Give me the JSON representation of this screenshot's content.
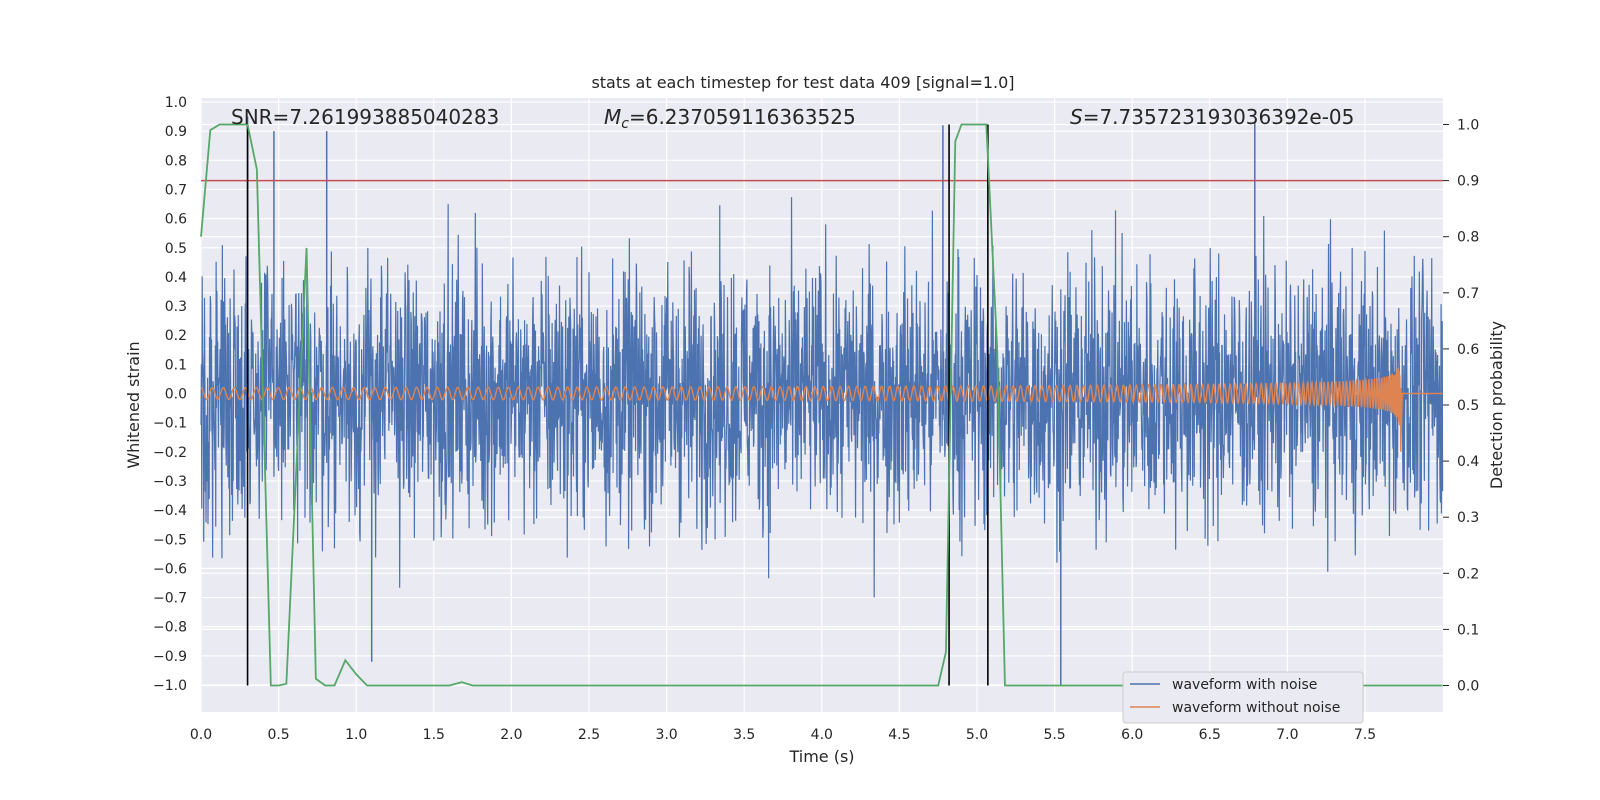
{
  "chart_data": {
    "type": "line",
    "title": "stats at each timestep for test data 409 [signal=1.0]",
    "xlabel": "Time (s)",
    "ylabel": "Whitened strain",
    "y2label": "Detection probability",
    "xlim": [
      0.0,
      8.0
    ],
    "ylim": [
      -1.1,
      1.03
    ],
    "y2lim": [
      -0.05,
      1.04
    ],
    "x_ticks": [
      "0.0",
      "0.5",
      "1.0",
      "1.5",
      "2.0",
      "2.5",
      "3.0",
      "3.5",
      "4.0",
      "4.5",
      "5.0",
      "5.5",
      "6.0",
      "6.5",
      "7.0",
      "7.5"
    ],
    "y_ticks": [
      "1.0",
      "0.9",
      "0.8",
      "0.7",
      "0.6",
      "0.5",
      "0.4",
      "0.3",
      "0.2",
      "0.1",
      "0.0",
      "−0.1",
      "−0.2",
      "−0.3",
      "−0.4",
      "−0.5",
      "−0.6",
      "−0.7",
      "−0.8",
      "−0.9",
      "−1.0"
    ],
    "y2_ticks": [
      "1.0",
      "0.9",
      "0.8",
      "0.7",
      "0.6",
      "0.5",
      "0.4",
      "0.3",
      "0.2",
      "0.1",
      "0.0"
    ],
    "grid": true,
    "legend_position": "lower-right",
    "annotations": {
      "snr_prefix": "SNR=",
      "snr_value": "7.261993885040283",
      "mc_symbol": "M",
      "mc_sub": "c",
      "mc_value": "=6.237059116363525",
      "s_symbol": "S",
      "s_value": "=7.735723193036392e-05"
    },
    "series": [
      {
        "name": "waveform with noise",
        "color": "#4c72b0",
        "kind": "noise",
        "range": [
          -1.0,
          0.93
        ],
        "typical_amplitude": 0.55,
        "notable_peaks": [
          [
            0.3,
            0.95
          ],
          [
            0.47,
            0.9
          ],
          [
            0.81,
            0.9
          ],
          [
            4.78,
            0.92
          ],
          [
            6.79,
            0.93
          ],
          [
            5.54,
            -1.0
          ],
          [
            1.1,
            -0.92
          ]
        ]
      },
      {
        "name": "waveform without noise",
        "color": "#dd8452",
        "kind": "chirp",
        "amplitude_start": 0.02,
        "amplitude_peak": 0.17,
        "amplitude_peak_min": -0.2,
        "merger_time": 7.73,
        "end_time": 8.0
      },
      {
        "name": "detection probability",
        "color": "#55a868",
        "axis": "right",
        "points": [
          [
            0.0,
            0.8
          ],
          [
            0.06,
            0.99
          ],
          [
            0.12,
            1.0
          ],
          [
            0.3,
            1.0
          ],
          [
            0.36,
            0.92
          ],
          [
            0.45,
            0.0
          ],
          [
            0.5,
            0.0
          ],
          [
            0.55,
            0.003
          ],
          [
            0.68,
            0.78
          ],
          [
            0.74,
            0.012
          ],
          [
            0.8,
            0.0
          ],
          [
            0.86,
            0.0
          ],
          [
            0.93,
            0.045
          ],
          [
            1.0,
            0.02
          ],
          [
            1.07,
            0.0
          ],
          [
            1.6,
            0.0
          ],
          [
            1.68,
            0.006
          ],
          [
            1.75,
            0.0
          ],
          [
            4.75,
            0.0
          ],
          [
            4.8,
            0.06
          ],
          [
            4.86,
            0.97
          ],
          [
            4.9,
            1.0
          ],
          [
            5.06,
            1.0
          ],
          [
            5.13,
            0.6
          ],
          [
            5.18,
            0.0
          ],
          [
            8.0,
            0.0
          ]
        ]
      }
    ],
    "threshold": {
      "y2": 0.9,
      "color": "#c44e52"
    },
    "vlines": {
      "x": [
        0.3,
        4.82,
        5.07
      ],
      "color": "#000000"
    },
    "colors": {
      "background": "#eaeaf2",
      "grid": "#ffffff"
    }
  }
}
